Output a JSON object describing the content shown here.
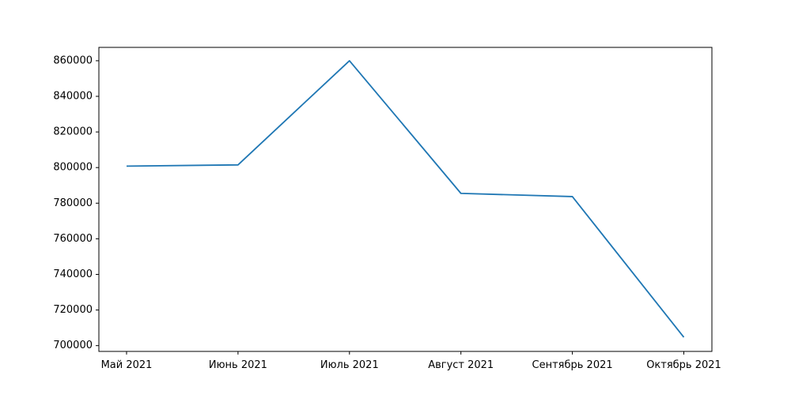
{
  "chart_data": {
    "type": "line",
    "title": "",
    "xlabel": "",
    "ylabel": "",
    "categories": [
      "Май 2021",
      "Июнь 2021",
      "Июль 2021",
      "Август 2021",
      "Сентябрь 2021",
      "Октябрь 2021"
    ],
    "series": [
      {
        "values": [
          800800,
          801500,
          860000,
          785500,
          783700,
          704700
        ],
        "color": "#1f77b4"
      }
    ],
    "y_ticks": [
      700000,
      720000,
      740000,
      760000,
      780000,
      800000,
      820000,
      840000,
      860000
    ],
    "ylim": [
      696750,
      867500
    ],
    "grid": false,
    "legend": "none"
  }
}
